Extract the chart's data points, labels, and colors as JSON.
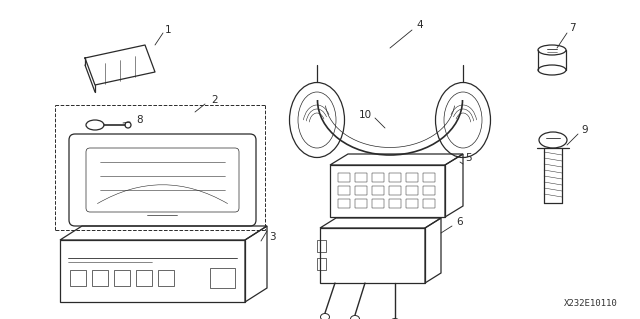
{
  "background_color": "#ffffff",
  "line_color": "#2a2a2a",
  "diagram_code": "X232E10110",
  "fig_w": 6.4,
  "fig_h": 3.19,
  "dpi": 100
}
